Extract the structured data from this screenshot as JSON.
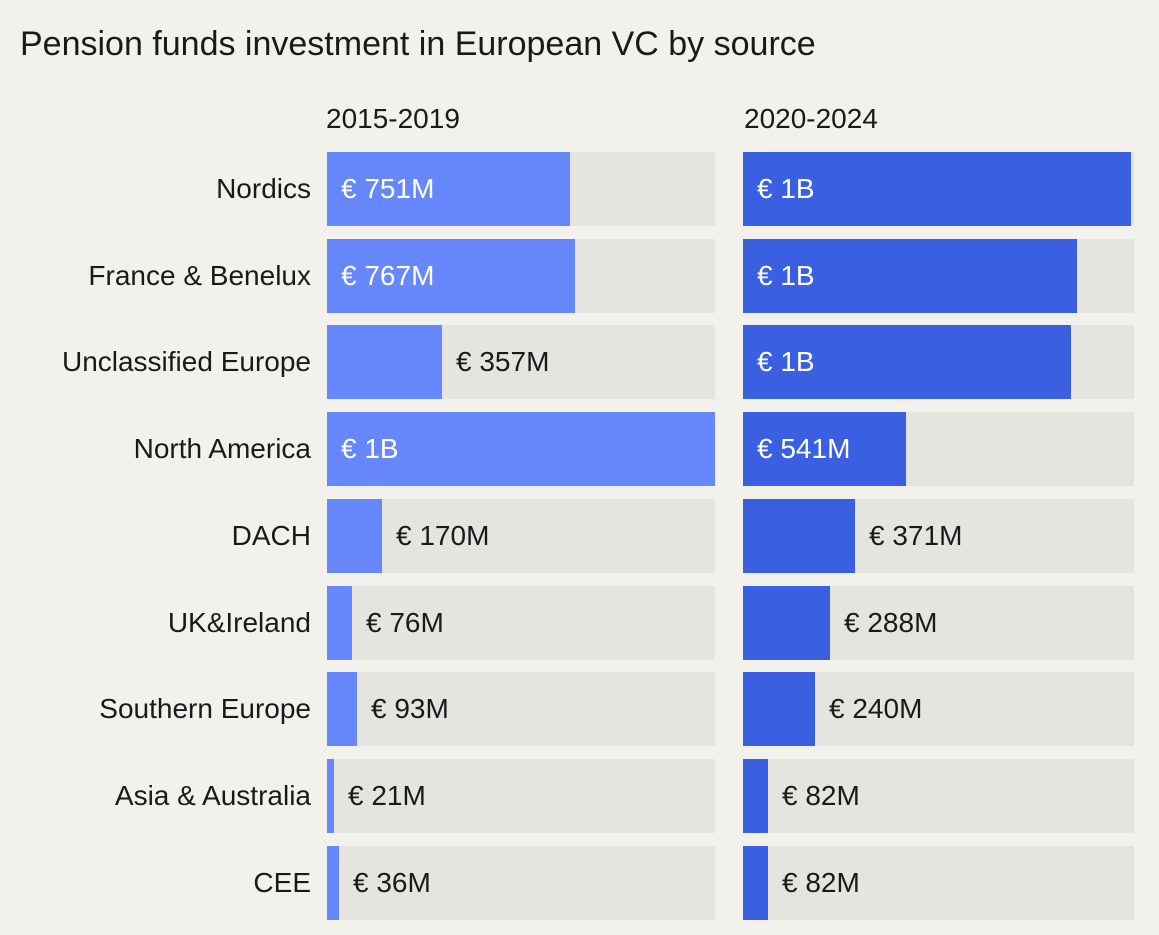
{
  "chart_data": {
    "type": "bar",
    "orientation": "horizontal",
    "title": "Pension funds investment in European VC by source",
    "unit": "EUR millions",
    "categories": [
      "Nordics",
      "France & Benelux",
      "Unclassified Europe",
      "North America",
      "DACH",
      "UK&Ireland",
      "Southern Europe",
      "Asia & Australia",
      "CEE"
    ],
    "series": [
      {
        "name": "2015-2019",
        "color": "#6688fc",
        "values": [
          751,
          767,
          357,
          1200,
          170,
          76,
          93,
          21,
          36
        ],
        "labels": [
          "€ 751M",
          "€ 767M",
          "€ 357M",
          "€ 1B",
          "€ 170M",
          "€ 76M",
          "€ 93M",
          "€ 21M",
          "€ 36M"
        ],
        "xlim": [
          0,
          1200
        ]
      },
      {
        "name": "2020-2024",
        "color": "#3a60e1",
        "values": [
          1290,
          1110,
          1090,
          541,
          371,
          288,
          240,
          82,
          82
        ],
        "labels": [
          "€ 1B",
          "€ 1B",
          "€ 1B",
          "€ 541M",
          "€ 371M",
          "€ 288M",
          "€ 240M",
          "€ 82M",
          "€ 82M"
        ],
        "xlim": [
          0,
          1300
        ]
      }
    ],
    "track_color": "#e5e4df"
  }
}
